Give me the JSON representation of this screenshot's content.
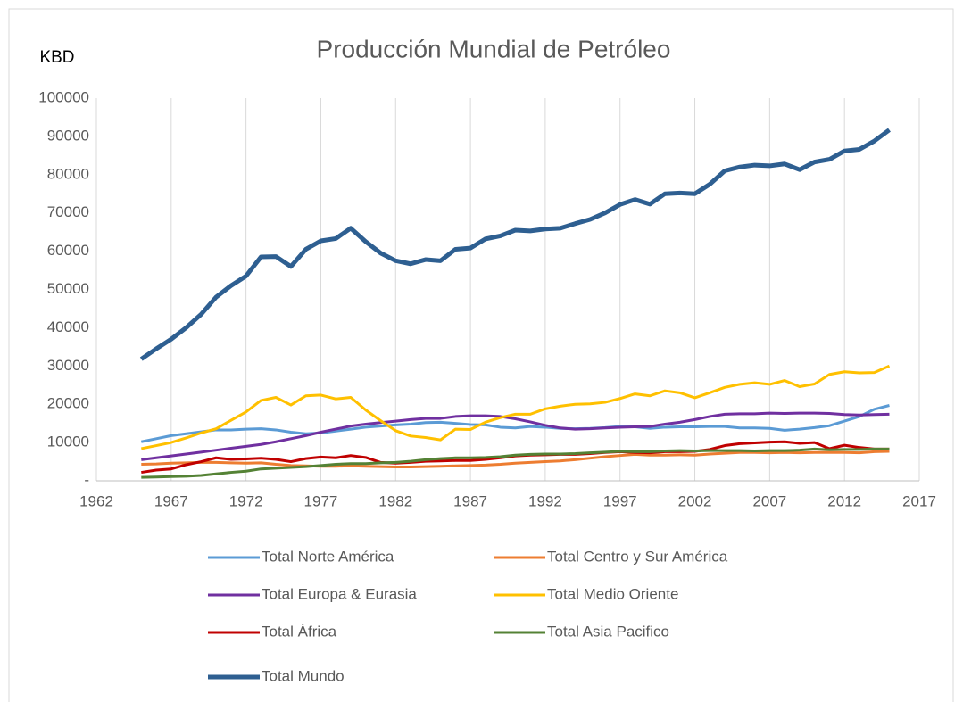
{
  "chart_data": {
    "type": "line",
    "title": "Producción Mundial de Petróleo",
    "y_label": "KBD",
    "x": [
      1965,
      1966,
      1967,
      1968,
      1969,
      1970,
      1971,
      1972,
      1973,
      1974,
      1975,
      1976,
      1977,
      1978,
      1979,
      1980,
      1981,
      1982,
      1983,
      1984,
      1985,
      1986,
      1987,
      1988,
      1989,
      1990,
      1991,
      1992,
      1993,
      1994,
      1995,
      1996,
      1997,
      1998,
      1999,
      2000,
      2001,
      2002,
      2003,
      2004,
      2005,
      2006,
      2007,
      2008,
      2009,
      2010,
      2011,
      2012,
      2013,
      2014,
      2015
    ],
    "series": [
      {
        "name": "Total Norte América",
        "color": "#5b9bd5",
        "values": [
          10200,
          11000,
          11800,
          12300,
          12800,
          13300,
          13300,
          13500,
          13600,
          13300,
          12700,
          12300,
          12500,
          13000,
          13500,
          14000,
          14300,
          14600,
          14800,
          15200,
          15300,
          15000,
          14700,
          14600,
          14000,
          13800,
          14200,
          14000,
          13700,
          13600,
          13700,
          13900,
          14200,
          14100,
          13700,
          14000,
          14100,
          14100,
          14200,
          14200,
          13800,
          13800,
          13700,
          13200,
          13500,
          13900,
          14400,
          15600,
          16800,
          18700,
          19700
        ]
      },
      {
        "name": "Total Centro y Sur América",
        "color": "#ed7d31",
        "values": [
          4300,
          4400,
          4600,
          4700,
          4800,
          4800,
          4700,
          4600,
          4700,
          4300,
          4000,
          3900,
          3800,
          3800,
          3900,
          3800,
          3700,
          3600,
          3600,
          3700,
          3800,
          3900,
          4000,
          4100,
          4300,
          4600,
          4800,
          5000,
          5200,
          5500,
          5900,
          6300,
          6600,
          6900,
          6700,
          6700,
          6800,
          6700,
          7000,
          7200,
          7400,
          7400,
          7300,
          7400,
          7300,
          7400,
          7400,
          7400,
          7300,
          7600,
          7700
        ]
      },
      {
        "name": "Total Europa & Eurasia",
        "color": "#7030a0",
        "values": [
          5500,
          6000,
          6500,
          7000,
          7500,
          8000,
          8500,
          9000,
          9500,
          10200,
          11000,
          11800,
          12700,
          13500,
          14300,
          14800,
          15200,
          15600,
          16000,
          16300,
          16300,
          16800,
          17000,
          17000,
          16800,
          16200,
          15400,
          14500,
          13800,
          13500,
          13600,
          13800,
          14000,
          14100,
          14200,
          14800,
          15300,
          16000,
          16800,
          17400,
          17500,
          17500,
          17700,
          17600,
          17700,
          17700,
          17600,
          17300,
          17200,
          17300,
          17400
        ]
      },
      {
        "name": "Total Medio Oriente",
        "color": "#ffc000",
        "values": [
          8400,
          9200,
          10000,
          11200,
          12500,
          13600,
          15800,
          18000,
          21000,
          21800,
          19800,
          22200,
          22400,
          21400,
          21800,
          18500,
          15700,
          13100,
          11700,
          11300,
          10700,
          13500,
          13400,
          15300,
          16500,
          17400,
          17400,
          18800,
          19500,
          20000,
          20100,
          20500,
          21500,
          22700,
          22200,
          23500,
          23000,
          21700,
          23000,
          24400,
          25200,
          25600,
          25200,
          26200,
          24600,
          25300,
          27800,
          28500,
          28200,
          28300,
          30000
        ]
      },
      {
        "name": "Total África",
        "color": "#c00000",
        "values": [
          2200,
          2800,
          3100,
          4200,
          5000,
          6000,
          5600,
          5700,
          5900,
          5600,
          5000,
          5800,
          6200,
          6000,
          6600,
          6100,
          4800,
          4600,
          4800,
          5100,
          5200,
          5300,
          5300,
          5600,
          6000,
          6500,
          6700,
          6800,
          6900,
          6900,
          7100,
          7400,
          7600,
          7400,
          7300,
          7600,
          7600,
          7700,
          8200,
          9200,
          9700,
          9900,
          10100,
          10200,
          9800,
          10000,
          8400,
          9300,
          8700,
          8300,
          8300
        ]
      },
      {
        "name": "Total Asia Pacifico",
        "color": "#548235",
        "values": [
          900,
          1000,
          1100,
          1200,
          1400,
          1800,
          2200,
          2500,
          3100,
          3300,
          3500,
          3700,
          4000,
          4300,
          4500,
          4500,
          4700,
          4800,
          5100,
          5500,
          5800,
          6000,
          6000,
          6100,
          6300,
          6700,
          6900,
          7000,
          7000,
          7100,
          7300,
          7500,
          7700,
          7600,
          7600,
          7800,
          7900,
          7800,
          7900,
          7900,
          7900,
          7800,
          7900,
          7900,
          8000,
          8300,
          8100,
          8200,
          8200,
          8300,
          8300
        ]
      },
      {
        "name": "Total Mundo",
        "color": "#2e5f91",
        "values": [
          31800,
          34500,
          37000,
          40000,
          43500,
          48000,
          51000,
          53500,
          58500,
          58600,
          56000,
          60500,
          62700,
          63300,
          66000,
          62500,
          59500,
          57500,
          56700,
          57800,
          57500,
          60500,
          60800,
          63200,
          64000,
          65500,
          65300,
          65800,
          66000,
          67200,
          68300,
          70000,
          72200,
          73500,
          72300,
          75000,
          75200,
          75000,
          77500,
          81000,
          82000,
          82500,
          82300,
          82800,
          81300,
          83300,
          84000,
          86200,
          86600,
          88800,
          91700
        ]
      }
    ],
    "xlim": [
      1962,
      2017
    ],
    "xticks": [
      1962,
      1967,
      1972,
      1977,
      1982,
      1987,
      1992,
      1997,
      2002,
      2007,
      2012,
      2017
    ],
    "ylim": [
      0,
      100000
    ],
    "yticks": [
      {
        "value": 0,
        "label": "-"
      },
      10000,
      20000,
      30000,
      40000,
      50000,
      60000,
      70000,
      80000,
      90000,
      100000
    ],
    "grid": "x",
    "legend": "bottom"
  }
}
